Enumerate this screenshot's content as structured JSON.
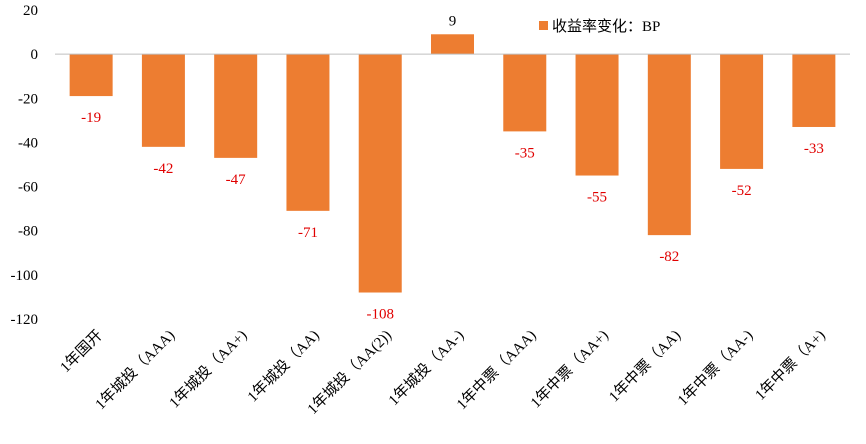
{
  "chart_data": {
    "type": "bar",
    "categories": [
      "1年国开",
      "1年城投（AAA)",
      "1年城投（AA+)",
      "1年城投（AA)",
      "1年城投（AA(2))",
      "1年城投（AA-)",
      "1年中票（AAA)",
      "1年中票（AA+)",
      "1年中票（AA)",
      "1年中票（AA-)",
      "1年中票（A+)"
    ],
    "series": [
      {
        "name": "收益率变化：BP",
        "values": [
          -19,
          -42,
          -47,
          -71,
          -108,
          9,
          -35,
          -55,
          -82,
          -52,
          -33
        ]
      }
    ],
    "data_labels": [
      "-19",
      "-42",
      "-47",
      "-71",
      "-108",
      "9",
      "-35",
      "-55",
      "-82",
      "-52",
      "-33"
    ],
    "ylim": [
      -120,
      20
    ],
    "yticks": [
      20,
      0,
      -20,
      -40,
      -60,
      -80,
      -100,
      -120
    ],
    "ytick_labels": [
      "20",
      "0",
      "-20",
      "-40",
      "-60",
      "-80",
      "-100",
      "-120"
    ],
    "title": "",
    "xlabel": "",
    "ylabel": "",
    "grid": false,
    "legend_position": "top-center",
    "colors": {
      "bar": "#ED7D31",
      "negative_label": "#E00000",
      "positive_label": "#000000",
      "axis": "#BFBFBF"
    }
  }
}
